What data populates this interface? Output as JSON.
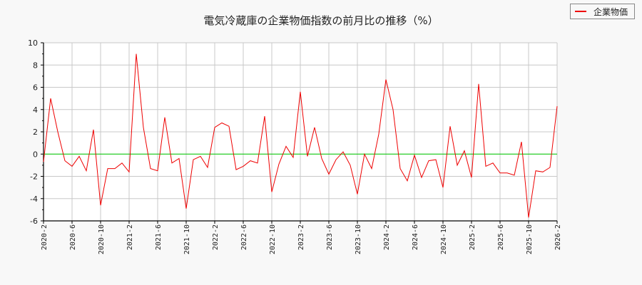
{
  "title": "電気冷蔵庫の企業物価指数の前月比の推移（%）",
  "legend": {
    "label": "企業物価",
    "color": "#ee0000"
  },
  "colors": {
    "series": "#ee0000",
    "zero_line": "#00cc00",
    "grid": "#c8c8c8",
    "background": "#f8f8f8",
    "plot_bg": "#ffffff"
  },
  "chart_data": {
    "type": "line",
    "title": "電気冷蔵庫の企業物価指数の前月比の推移（%）",
    "xlabel": "",
    "ylabel": "",
    "ylim": [
      -6,
      10
    ],
    "yticks": [
      -6,
      -4,
      -2,
      0,
      2,
      4,
      6,
      8,
      10
    ],
    "xticks": [
      "2020-2",
      "2020-6",
      "2020-10",
      "2021-2",
      "2021-6",
      "2021-10",
      "2022-2",
      "2022-6",
      "2022-10",
      "2023-2",
      "2023-6",
      "2023-10",
      "2024-2",
      "2024-6",
      "2024-10",
      "2025-2",
      "2025-6",
      "2025-10",
      "2026-2"
    ],
    "grid": true,
    "legend_position": "top-right",
    "x": [
      "2020-2",
      "2020-3",
      "2020-4",
      "2020-5",
      "2020-6",
      "2020-7",
      "2020-8",
      "2020-9",
      "2020-10",
      "2020-11",
      "2020-12",
      "2021-1",
      "2021-2",
      "2021-3",
      "2021-4",
      "2021-5",
      "2021-6",
      "2021-7",
      "2021-8",
      "2021-9",
      "2021-10",
      "2021-11",
      "2021-12",
      "2022-1",
      "2022-2",
      "2022-3",
      "2022-4",
      "2022-5",
      "2022-6",
      "2022-7",
      "2022-8",
      "2022-9",
      "2022-10",
      "2022-11",
      "2022-12",
      "2023-1",
      "2023-2",
      "2023-3",
      "2023-4",
      "2023-5",
      "2023-6",
      "2023-7",
      "2023-8",
      "2023-9",
      "2023-10",
      "2023-11",
      "2023-12",
      "2024-1",
      "2024-2",
      "2024-3",
      "2024-4",
      "2024-5",
      "2024-6",
      "2024-7",
      "2024-8",
      "2024-9",
      "2024-10",
      "2024-11",
      "2024-12",
      "2025-1",
      "2025-2",
      "2025-3",
      "2025-4",
      "2025-5",
      "2025-6",
      "2025-7",
      "2025-8",
      "2025-9",
      "2025-10",
      "2025-11",
      "2025-12",
      "2026-1",
      "2026-2"
    ],
    "series": [
      {
        "name": "企業物価",
        "values": [
          -0.7,
          5.0,
          2.0,
          -0.6,
          -1.1,
          -0.2,
          -1.5,
          2.2,
          -4.6,
          -1.3,
          -1.3,
          -0.8,
          -1.6,
          9.0,
          2.4,
          -1.3,
          -1.5,
          3.3,
          -0.8,
          -0.4,
          -4.9,
          -0.5,
          -0.2,
          -1.2,
          2.4,
          2.8,
          2.5,
          -1.4,
          -1.1,
          -0.6,
          -0.8,
          3.4,
          -3.4,
          -0.9,
          0.7,
          -0.3,
          5.6,
          -0.2,
          2.4,
          -0.4,
          -1.8,
          -0.5,
          0.2,
          -1.0,
          -3.6,
          0.0,
          -1.3,
          1.8,
          6.7,
          4.0,
          -1.3,
          -2.4,
          -0.1,
          -2.1,
          -0.6,
          -0.5,
          -3.0,
          2.5,
          -1.0,
          0.3,
          -2.1,
          6.3,
          -1.1,
          -0.8,
          -1.7,
          -1.7,
          -1.9,
          1.1,
          -5.7,
          -1.5,
          -1.6,
          -1.2,
          4.3
        ]
      }
    ]
  }
}
